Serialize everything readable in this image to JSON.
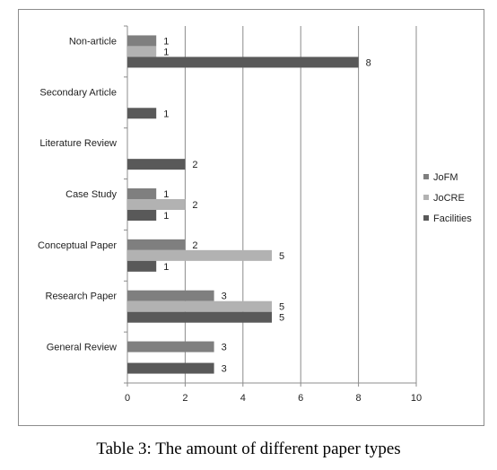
{
  "caption": "Table 3: The amount of different paper types",
  "chart_data": {
    "type": "bar",
    "orientation": "horizontal",
    "categories": [
      "Non-article",
      "Secondary Article",
      "Literature Review",
      "Case Study",
      "Conceptual Paper",
      "Research Paper",
      "General Review"
    ],
    "series": [
      {
        "name": "JoFM",
        "color": "#7f7f7f",
        "values": [
          1,
          null,
          null,
          1,
          2,
          3,
          3
        ]
      },
      {
        "name": "JoCRE",
        "color": "#b2b2b2",
        "values": [
          1,
          null,
          null,
          2,
          5,
          5,
          null
        ]
      },
      {
        "name": "Facilities",
        "color": "#595959",
        "values": [
          8,
          1,
          2,
          1,
          1,
          5,
          3
        ]
      }
    ],
    "xlim": [
      0,
      10
    ],
    "xticks": [
      0,
      2,
      4,
      6,
      8,
      10
    ],
    "grid": true,
    "legend_position": "right"
  }
}
